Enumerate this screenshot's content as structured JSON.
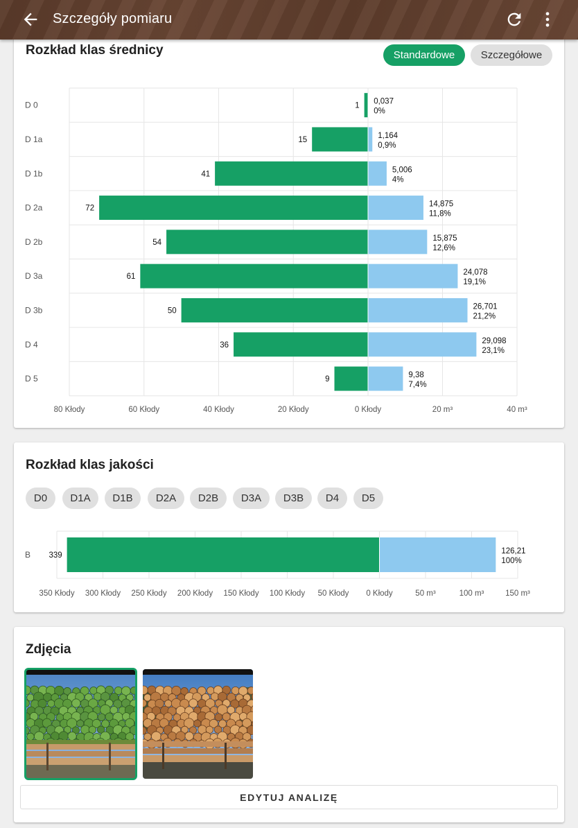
{
  "appbar": {
    "title": "Szczegóły pomiaru",
    "back_icon": "arrow-back-icon",
    "refresh_icon": "refresh-icon",
    "more_icon": "more-vert-icon"
  },
  "diameter": {
    "title": "Rozkład klas średnicy",
    "toggle_standard": "Standardowe",
    "toggle_detailed": "Szczegółowe"
  },
  "quality": {
    "title": "Rozkład klas jakości",
    "chips": [
      "D0",
      "D1A",
      "D1B",
      "D2A",
      "D2B",
      "D3A",
      "D3B",
      "D4",
      "D5"
    ]
  },
  "photos": {
    "title": "Zdjęcia",
    "edit_button": "EDYTUJ ANALIZĘ"
  },
  "colors": {
    "green": "#16a065",
    "blue": "#8ec9ef",
    "brown": "#5d3c2b"
  },
  "chart_data": [
    {
      "type": "bar",
      "orientation": "horizontal-diverging",
      "categories": [
        "D 0",
        "D 1a",
        "D 1b",
        "D 2a",
        "D 2b",
        "D 3a",
        "D 3b",
        "D 4",
        "D 5"
      ],
      "series": [
        {
          "values": [
            1,
            15,
            41,
            72,
            54,
            61,
            50,
            36,
            9
          ],
          "labels": [
            "1",
            "15",
            "41",
            "72",
            "54",
            "61",
            "50",
            "36",
            "9"
          ]
        },
        {
          "values": [
            0.037,
            1.164,
            5.006,
            14.875,
            15.875,
            24.078,
            26.701,
            29.098,
            9.38
          ],
          "labels": [
            "0,037",
            "1,164",
            "5,006",
            "14,875",
            "15,875",
            "24,078",
            "26,701",
            "29,098",
            "9,38"
          ],
          "percents": [
            "0%",
            "0,9%",
            "4%",
            "11,8%",
            "12,6%",
            "19,1%",
            "21,2%",
            "23,1%",
            "7,4%"
          ]
        }
      ],
      "left_range": [
        0,
        80
      ],
      "right_range": [
        0,
        40
      ],
      "left_ticks": [
        "80 Kłody",
        "60 Kłody",
        "40 Kłody",
        "20 Kłody",
        "0 Kłody"
      ],
      "right_ticks": [
        "20 m³",
        "40 m³"
      ],
      "grid": true
    },
    {
      "type": "bar",
      "orientation": "horizontal-diverging",
      "categories": [
        "B"
      ],
      "series": [
        {
          "values": [
            339
          ],
          "labels": [
            "339"
          ]
        },
        {
          "values": [
            126.21
          ],
          "labels": [
            "126,21"
          ],
          "percents": [
            "100%"
          ]
        }
      ],
      "left_range": [
        0,
        350
      ],
      "right_range": [
        0,
        150
      ],
      "left_ticks": [
        "350 Kłody",
        "300 Kłody",
        "250 Kłody",
        "200 Kłody",
        "150 Kłody",
        "100 Kłody",
        "50 Kłody",
        "0 Kłody"
      ],
      "right_ticks": [
        "50 m³",
        "100 m³",
        "150 m³"
      ],
      "grid": true
    }
  ]
}
